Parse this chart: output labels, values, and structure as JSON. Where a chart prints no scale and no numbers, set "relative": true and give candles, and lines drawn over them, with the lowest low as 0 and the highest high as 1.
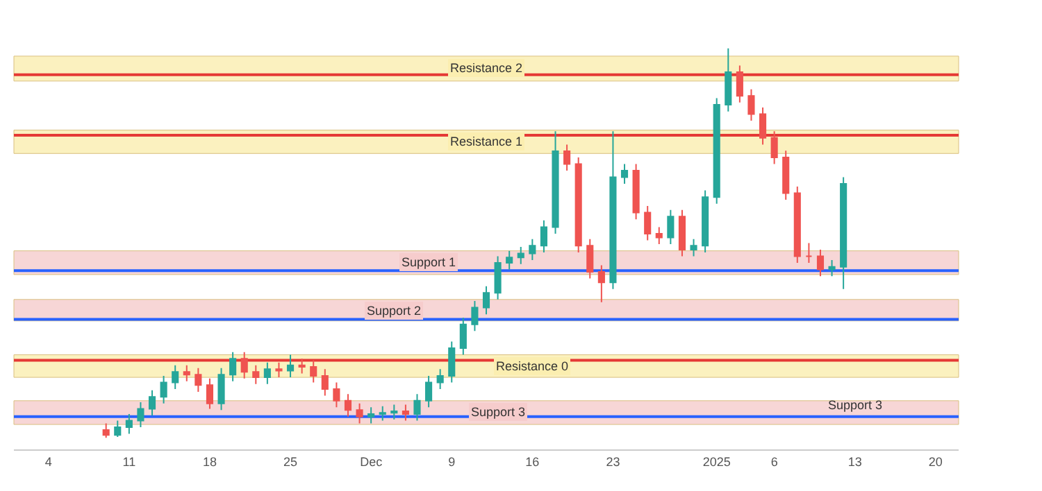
{
  "chart_data": {
    "type": "candlestick",
    "relative": true,
    "x": [
      "2024-11-09",
      "2024-11-10",
      "2024-11-11",
      "2024-11-12",
      "2024-11-13",
      "2024-11-14",
      "2024-11-15",
      "2024-11-16",
      "2024-11-17",
      "2024-11-18",
      "2024-11-19",
      "2024-11-20",
      "2024-11-21",
      "2024-11-22",
      "2024-11-23",
      "2024-11-24",
      "2024-11-25",
      "2024-11-26",
      "2024-11-27",
      "2024-11-28",
      "2024-11-29",
      "2024-11-30",
      "2024-12-01",
      "2024-12-02",
      "2024-12-03",
      "2024-12-04",
      "2024-12-05",
      "2024-12-06",
      "2024-12-07",
      "2024-12-08",
      "2024-12-09",
      "2024-12-10",
      "2024-12-11",
      "2024-12-12",
      "2024-12-13",
      "2024-12-14",
      "2024-12-15",
      "2024-12-16",
      "2024-12-17",
      "2024-12-18",
      "2024-12-19",
      "2024-12-20",
      "2024-12-21",
      "2024-12-22",
      "2024-12-23",
      "2024-12-24",
      "2024-12-25",
      "2024-12-26",
      "2024-12-27",
      "2024-12-28",
      "2024-12-29",
      "2024-12-30",
      "2024-12-31",
      "2025-01-01",
      "2025-01-02",
      "2025-01-03",
      "2025-01-04",
      "2025-01-05",
      "2025-01-06",
      "2025-01-07",
      "2025-01-08",
      "2025-01-09",
      "2025-01-10",
      "2025-01-11",
      "2025-01-12"
    ],
    "ohlc": [
      [
        0.02,
        0.037,
        0,
        0.007
      ],
      [
        0.007,
        0.044,
        0.002,
        0.027
      ],
      [
        0.027,
        0.061,
        0.01,
        0.044
      ],
      [
        0.044,
        0.091,
        0.027,
        0.074
      ],
      [
        0.074,
        0.122,
        0.057,
        0.105
      ],
      [
        0.105,
        0.159,
        0.088,
        0.142
      ],
      [
        0.142,
        0.186,
        0.125,
        0.169
      ],
      [
        0.169,
        0.186,
        0.145,
        0.162
      ],
      [
        0.162,
        0.179,
        0.118,
        0.135
      ],
      [
        0.135,
        0.152,
        0.074,
        0.088
      ],
      [
        0.088,
        0.179,
        0.071,
        0.162
      ],
      [
        0.162,
        0.22,
        0.145,
        0.203
      ],
      [
        0.203,
        0.22,
        0.152,
        0.169
      ],
      [
        0.169,
        0.186,
        0.138,
        0.155
      ],
      [
        0.155,
        0.193,
        0.138,
        0.176
      ],
      [
        0.176,
        0.193,
        0.155,
        0.172
      ],
      [
        0.172,
        0.213,
        0.155,
        0.186
      ],
      [
        0.186,
        0.203,
        0.165,
        0.182
      ],
      [
        0.182,
        0.199,
        0.142,
        0.159
      ],
      [
        0.159,
        0.176,
        0.108,
        0.125
      ],
      [
        0.125,
        0.142,
        0.078,
        0.095
      ],
      [
        0.095,
        0.112,
        0.054,
        0.071
      ],
      [
        0.071,
        0.088,
        0.037,
        0.054
      ],
      [
        0.054,
        0.078,
        0.037,
        0.061
      ],
      [
        0.061,
        0.081,
        0.044,
        0.064
      ],
      [
        0.064,
        0.085,
        0.047,
        0.068
      ],
      [
        0.068,
        0.085,
        0.044,
        0.061
      ],
      [
        0.061,
        0.112,
        0.044,
        0.095
      ],
      [
        0.095,
        0.159,
        0.078,
        0.142
      ],
      [
        0.142,
        0.176,
        0.125,
        0.159
      ],
      [
        0.159,
        0.247,
        0.142,
        0.23
      ],
      [
        0.23,
        0.308,
        0.213,
        0.291
      ],
      [
        0.291,
        0.351,
        0.274,
        0.334
      ],
      [
        0.334,
        0.389,
        0.317,
        0.372
      ],
      [
        0.372,
        0.466,
        0.355,
        0.449
      ],
      [
        0.449,
        0.48,
        0.432,
        0.463
      ],
      [
        0.463,
        0.49,
        0.446,
        0.473
      ],
      [
        0.473,
        0.51,
        0.456,
        0.493
      ],
      [
        0.493,
        0.558,
        0.476,
        0.541
      ],
      [
        0.541,
        0.787,
        0.524,
        0.736
      ],
      [
        0.736,
        0.753,
        0.686,
        0.703
      ],
      [
        0.703,
        0.72,
        0.476,
        0.493
      ],
      [
        0.493,
        0.51,
        0.409,
        0.426
      ],
      [
        0.426,
        0.443,
        0.348,
        0.399
      ],
      [
        0.399,
        0.787,
        0.382,
        0.669
      ],
      [
        0.669,
        0.703,
        0.652,
        0.686
      ],
      [
        0.686,
        0.703,
        0.561,
        0.578
      ],
      [
        0.578,
        0.595,
        0.507,
        0.524
      ],
      [
        0.524,
        0.541,
        0.497,
        0.514
      ],
      [
        0.514,
        0.585,
        0.497,
        0.568
      ],
      [
        0.568,
        0.585,
        0.466,
        0.483
      ],
      [
        0.483,
        0.51,
        0.466,
        0.493
      ],
      [
        0.493,
        0.635,
        0.476,
        0.618
      ],
      [
        0.618,
        0.872,
        0.601,
        0.855
      ],
      [
        0.855,
        1.0,
        0.838,
        0.939
      ],
      [
        0.939,
        0.956,
        0.861,
        0.878
      ],
      [
        0.878,
        0.895,
        0.814,
        0.831
      ],
      [
        0.831,
        0.848,
        0.753,
        0.77
      ],
      [
        0.77,
        0.787,
        0.703,
        0.72
      ],
      [
        0.72,
        0.737,
        0.611,
        0.628
      ],
      [
        0.628,
        0.645,
        0.449,
        0.466
      ],
      [
        0.466,
        0.5,
        0.449,
        0.466
      ],
      [
        0.466,
        0.483,
        0.415,
        0.432
      ],
      [
        0.432,
        0.456,
        0.415,
        0.439
      ],
      [
        0.439,
        0.669,
        0.382,
        0.652
      ]
    ],
    "xlim": [
      "2024-11-01",
      "2025-01-22"
    ],
    "xticks": [
      {
        "value": "2024-11-04",
        "label": "4"
      },
      {
        "value": "2024-11-11",
        "label": "11"
      },
      {
        "value": "2024-11-18",
        "label": "18"
      },
      {
        "value": "2024-11-25",
        "label": "25"
      },
      {
        "value": "2024-12-02",
        "label": "Dec"
      },
      {
        "value": "2024-12-09",
        "label": "9"
      },
      {
        "value": "2024-12-16",
        "label": "16"
      },
      {
        "value": "2024-12-23",
        "label": "23"
      },
      {
        "value": "2025-01-01",
        "label": "2025"
      },
      {
        "value": "2025-01-06",
        "label": "6"
      },
      {
        "value": "2025-01-13",
        "label": "13"
      },
      {
        "value": "2025-01-20",
        "label": "20"
      }
    ],
    "ref_lines": [
      {
        "axis": "y",
        "value": 0.932,
        "color": "#e53935"
      },
      {
        "axis": "y",
        "value": 0.777,
        "color": "#e53935"
      },
      {
        "axis": "y",
        "value": 0.429,
        "color": "#2962ff"
      },
      {
        "axis": "y",
        "value": 0.304,
        "color": "#2962ff"
      },
      {
        "axis": "y",
        "value": 0.199,
        "color": "#e53935"
      },
      {
        "axis": "y",
        "value": 0.054,
        "color": "#2962ff"
      }
    ],
    "bands": [
      {
        "axis": "y",
        "from": 0.916,
        "to": 0.98,
        "label": "Resistance 2",
        "color": "#fbeeb0"
      },
      {
        "axis": "y",
        "from": 0.73,
        "to": 0.79,
        "label": "Resistance 1",
        "color": "#fbeeb0"
      },
      {
        "axis": "y",
        "from": 0.419,
        "to": 0.48,
        "label": "Support 1",
        "color": "#f6cccc"
      },
      {
        "axis": "y",
        "from": 0.3,
        "to": 0.355,
        "label": "Support 2",
        "color": "#f6cccc"
      },
      {
        "axis": "y",
        "from": 0.155,
        "to": 0.213,
        "label": "Resistance 0",
        "color": "#fbeeb0"
      },
      {
        "axis": "y",
        "from": 0.034,
        "to": 0.095,
        "label": "Support 3",
        "color": "#f6cccc"
      }
    ],
    "annotations": [
      {
        "text": "Support 3",
        "x": "2025-01-13",
        "y": 0.06
      }
    ],
    "grid": false
  }
}
